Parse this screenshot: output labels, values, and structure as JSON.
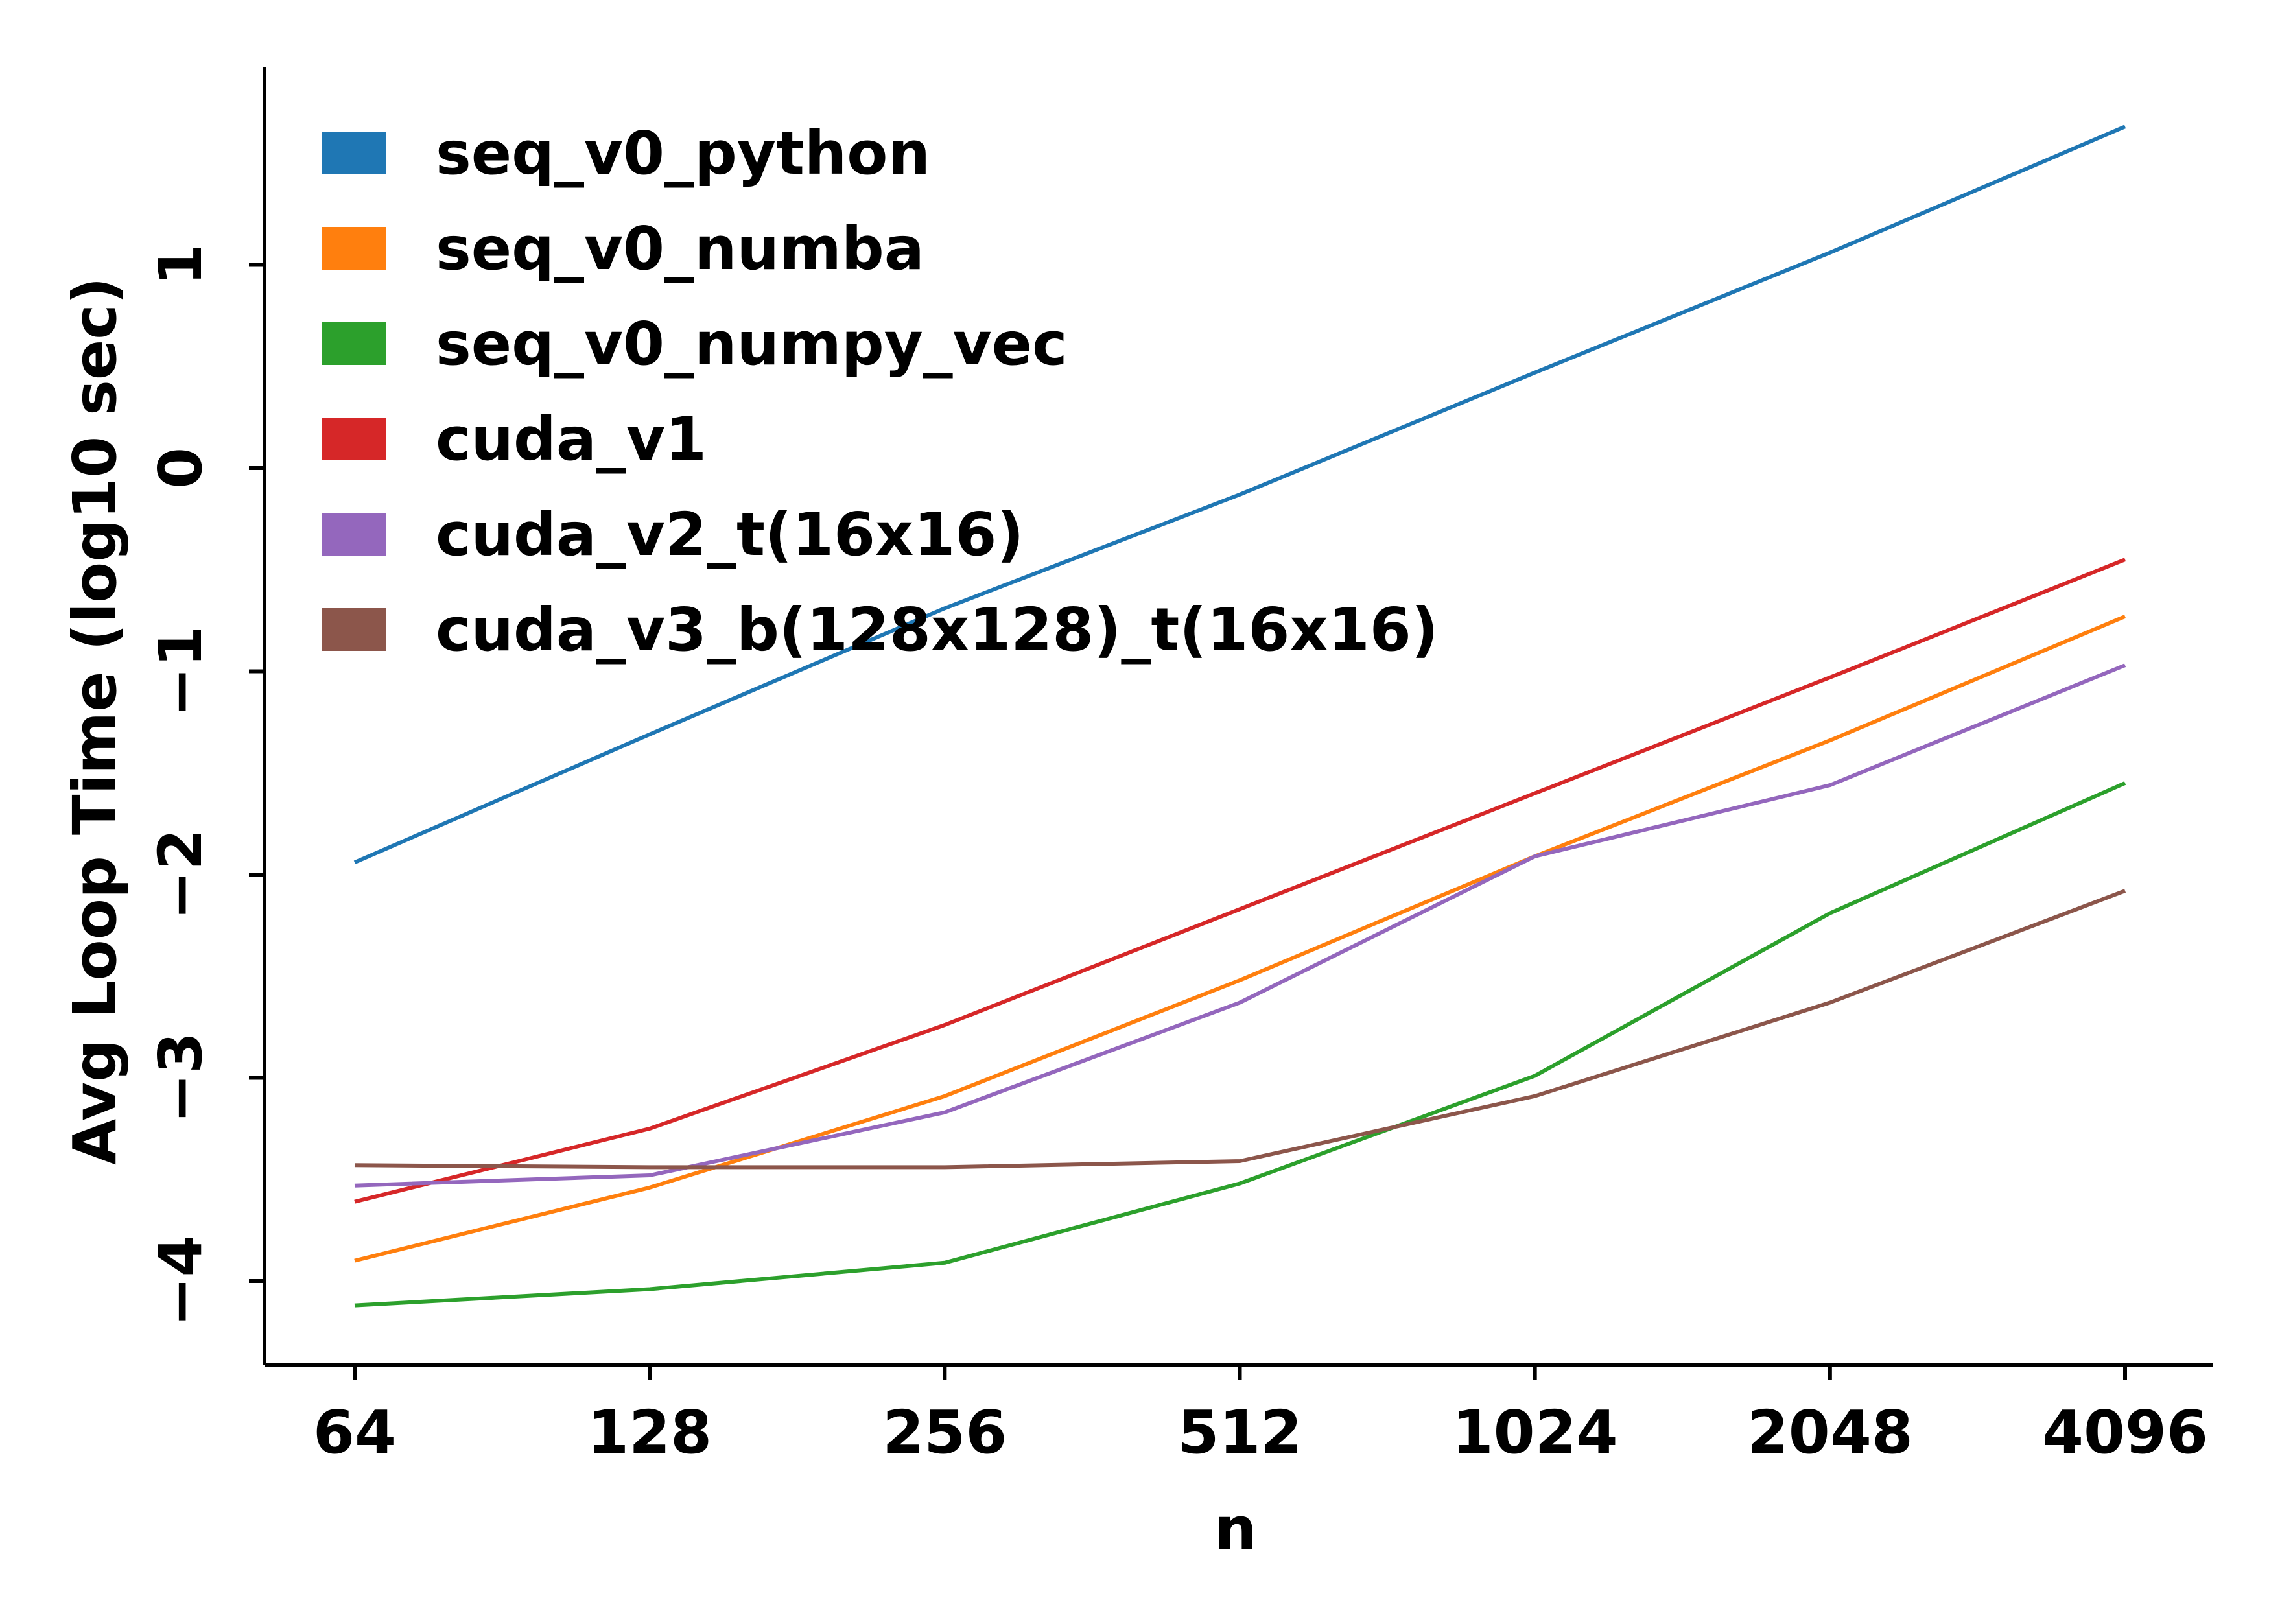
{
  "chart_data": {
    "type": "line",
    "title": "",
    "xlabel": "n",
    "ylabel": "Avg Loop Time (log10 sec)",
    "x": [
      64,
      128,
      256,
      512,
      1024,
      2048,
      4096
    ],
    "x_tick_labels": [
      "64",
      "128",
      "256",
      "512",
      "1024",
      "2048",
      "4096"
    ],
    "x_scale": "log2",
    "y_ticks": [
      1,
      0,
      -1,
      -2,
      -3,
      -4
    ],
    "y_tick_labels": [
      "1",
      "0",
      "−1",
      "−2",
      "−3",
      "−4"
    ],
    "ylim": [
      -4.4,
      1.95
    ],
    "grid": false,
    "legend_position": "top-left",
    "series": [
      {
        "name": "seq_v0_python",
        "color": "#1f77b4",
        "values": [
          -1.94,
          -1.31,
          -0.69,
          -0.13,
          0.47,
          1.06,
          1.68
        ]
      },
      {
        "name": "seq_v0_numba",
        "color": "#ff7f0e",
        "values": [
          -3.9,
          -3.54,
          -3.09,
          -2.52,
          -1.91,
          -1.34,
          -0.73
        ]
      },
      {
        "name": "seq_v0_numpy_vec",
        "color": "#2ca02c",
        "values": [
          -4.12,
          -4.04,
          -3.91,
          -3.52,
          -2.99,
          -2.19,
          -1.55
        ]
      },
      {
        "name": "cuda_v1",
        "color": "#d62728",
        "values": [
          -3.61,
          -3.25,
          -2.74,
          -2.17,
          -1.6,
          -1.03,
          -0.45
        ]
      },
      {
        "name": "cuda_v2_t(16x16)",
        "color": "#9467bd",
        "values": [
          -3.53,
          -3.48,
          -3.17,
          -2.63,
          -1.91,
          -1.56,
          -0.97
        ]
      },
      {
        "name": "cuda_v3_b(128x128)_t(16x16)",
        "color": "#8c564b",
        "values": [
          -3.43,
          -3.44,
          -3.44,
          -3.41,
          -3.09,
          -2.63,
          -2.08
        ]
      }
    ]
  }
}
